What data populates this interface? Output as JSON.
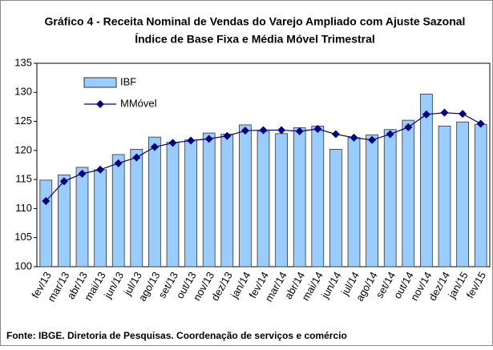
{
  "chart_data": {
    "type": "bar",
    "title": "Gráfico 4 - Receita Nominal de Vendas do Varejo Ampliado com Ajuste Sazonal",
    "subtitle": "Índice de Base Fixa e Média Móvel Trimestral",
    "source": "Fonte: IBGE. Diretoria de Pesquisas. Coordenação de serviços e comércio",
    "categories": [
      "fev/13",
      "mar/13",
      "abr/13",
      "mai/13",
      "jun/13",
      "jul/13",
      "ago/13",
      "set/13",
      "out/13",
      "nov/13",
      "dez/13",
      "jan/14",
      "fev/14",
      "mar/14",
      "abr/14",
      "mai/14",
      "jun/14",
      "jul/14",
      "ago/14",
      "set/14",
      "out/14",
      "nov/14",
      "dez/14",
      "jan/15",
      "fev/15"
    ],
    "series": [
      {
        "name": "IBF",
        "type": "bar",
        "color": "#99ccff",
        "values": [
          114.9,
          115.8,
          117.1,
          116.7,
          119.3,
          120.2,
          122.3,
          121.4,
          121.8,
          123.0,
          122.8,
          124.4,
          123.3,
          122.9,
          123.9,
          124.2,
          120.2,
          122.2,
          122.7,
          123.6,
          125.2,
          129.7,
          124.2,
          124.9,
          124.5
        ]
      },
      {
        "name": "MMóvel",
        "type": "line",
        "color": "#000080",
        "values": [
          111.3,
          114.7,
          116.0,
          116.7,
          117.8,
          118.8,
          120.6,
          121.3,
          121.7,
          122.0,
          122.5,
          123.4,
          123.5,
          123.5,
          123.3,
          123.7,
          122.8,
          122.2,
          121.8,
          122.8,
          124.0,
          126.2,
          126.5,
          126.3,
          124.6
        ]
      }
    ],
    "ylim": [
      100,
      135
    ],
    "yticks": [
      100,
      105,
      110,
      115,
      120,
      125,
      130,
      135
    ]
  }
}
